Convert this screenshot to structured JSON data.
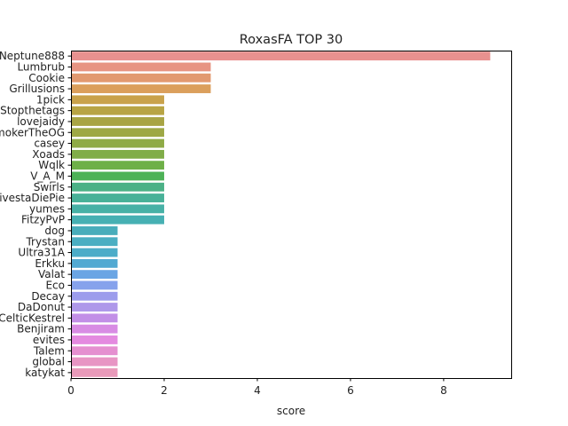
{
  "chart_data": {
    "type": "bar",
    "orientation": "horizontal",
    "title": "RoxasFA TOP 30",
    "xlabel": "score",
    "ylabel": "",
    "xlim": [
      0,
      9.45
    ],
    "xticks": [
      0,
      2,
      4,
      6,
      8
    ],
    "grid": false,
    "categories": [
      "Neptune888",
      "Lumbrub",
      "Cookie",
      "Grillusions",
      "1pick",
      "Stopthetags",
      "lovejaidy",
      "SmokerTheOG",
      "casey",
      "Xoads",
      "Wqlk",
      "V_A_M",
      "Swirls",
      "VivestaDiePie",
      "yumes",
      "FitzyPvP",
      "dog",
      "Trystan",
      "Ultra31A",
      "Erkku",
      "Valat",
      "Eco",
      "Decay",
      "DaDonut",
      "CelticKestrel",
      "Benjiram",
      "evites",
      "Talem",
      "global",
      "katykat"
    ],
    "values": [
      9,
      3,
      3,
      3,
      2,
      2,
      2,
      2,
      2,
      2,
      2,
      2,
      2,
      2,
      2,
      2,
      1,
      1,
      1,
      1,
      1,
      1,
      1,
      1,
      1,
      1,
      1,
      1,
      1,
      1
    ],
    "colors": [
      "#e8918f",
      "#e79482",
      "#e29970",
      "#db9f5c",
      "#c9a24b",
      "#b8a444",
      "#a8a444",
      "#9ea845",
      "#8fab46",
      "#80ad48",
      "#6eb048",
      "#4db257",
      "#4bb186",
      "#48b198",
      "#47b1a6",
      "#46b0b3",
      "#48adbb",
      "#4aaec2",
      "#4cacc8",
      "#51a9d2",
      "#6aa5e4",
      "#86a2ec",
      "#9c9cec",
      "#ae98ea",
      "#c28fe7",
      "#d88ce4",
      "#e48ae0",
      "#e58fd0",
      "#e895c4",
      "#e99aba"
    ]
  }
}
